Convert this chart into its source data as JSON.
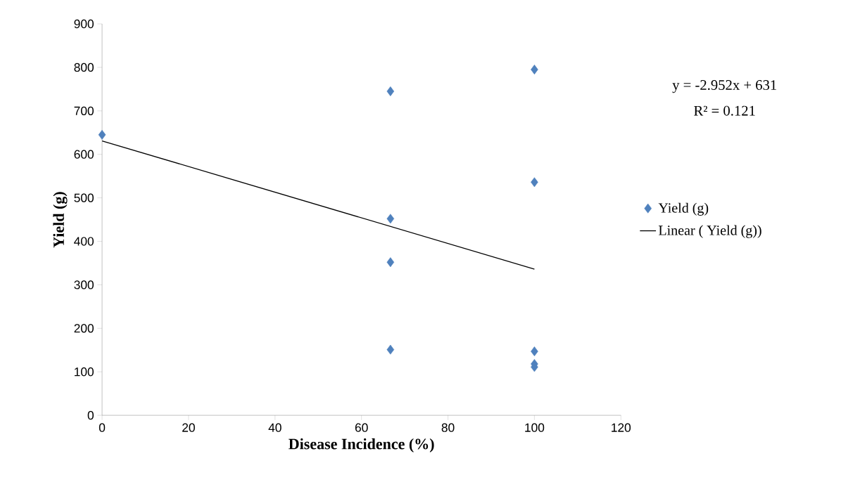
{
  "chart_data": {
    "type": "scatter",
    "xlabel": "Disease Incidence (%)",
    "ylabel": "Yield (g)",
    "xlim": [
      0,
      120
    ],
    "ylim": [
      0,
      900
    ],
    "xticks": [
      0,
      20,
      40,
      60,
      80,
      100,
      120
    ],
    "yticks": [
      0,
      100,
      200,
      300,
      400,
      500,
      600,
      700,
      800,
      900
    ],
    "legend": "right",
    "series": [
      {
        "name": "Yield (g)",
        "marker": "diamond",
        "color": "#4f81bd",
        "x": [
          0,
          66.7,
          66.7,
          66.7,
          66.7,
          100,
          100,
          100,
          100,
          100
        ],
        "values": [
          645,
          745,
          452,
          352,
          151,
          795,
          536,
          147,
          118,
          111
        ]
      },
      {
        "name": "Linear ( Yield (g))",
        "type": "line",
        "color": "#000000",
        "x": [
          0,
          100
        ],
        "values": [
          631,
          336
        ]
      }
    ],
    "annotations": [
      "y = -2.952x + 631",
      "R² = 0.121"
    ]
  }
}
